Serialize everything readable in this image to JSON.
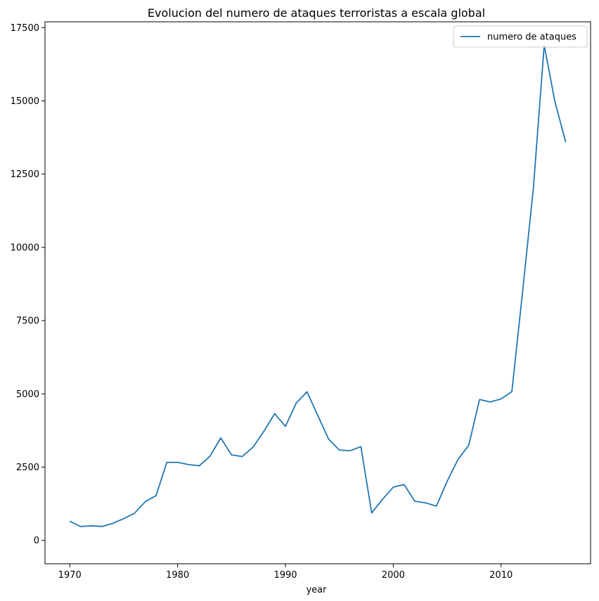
{
  "chart_data": {
    "type": "line",
    "title": "Evolucion del numero de ataques terroristas a escala global",
    "xlabel": "year",
    "ylabel": "",
    "xlim": [
      1967.7,
      2018.3
    ],
    "ylim": [
      -800,
      17700
    ],
    "x_ticks": [
      1970,
      1980,
      1990,
      2000,
      2010
    ],
    "y_ticks": [
      0,
      2500,
      5000,
      7500,
      10000,
      12500,
      15000,
      17500
    ],
    "grid": false,
    "legend_position": "top-right",
    "series": [
      {
        "name": "numero de ataques",
        "color": "#1f77b4",
        "x": [
          1970,
          1971,
          1972,
          1973,
          1974,
          1975,
          1976,
          1977,
          1978,
          1979,
          1980,
          1981,
          1982,
          1983,
          1984,
          1985,
          1986,
          1987,
          1988,
          1989,
          1990,
          1991,
          1992,
          1994,
          1995,
          1996,
          1997,
          1998,
          1999,
          2000,
          2001,
          2002,
          2003,
          2004,
          2005,
          2006,
          2007,
          2008,
          2009,
          2010,
          2011,
          2012,
          2013,
          2014,
          2015,
          2016
        ],
        "values": [
          651,
          471,
          494,
          473,
          581,
          740,
          923,
          1319,
          1526,
          2662,
          2662,
          2586,
          2544,
          2870,
          3495,
          2915,
          2860,
          3183,
          3721,
          4324,
          3887,
          4683,
          5071,
          3456,
          3081,
          3058,
          3197,
          934,
          1395,
          1814,
          1906,
          1333,
          1278,
          1166,
          2017,
          2758,
          3242,
          4805,
          4721,
          4826,
          5076,
          8500,
          12036,
          16903,
          14965,
          13587
        ]
      }
    ]
  }
}
